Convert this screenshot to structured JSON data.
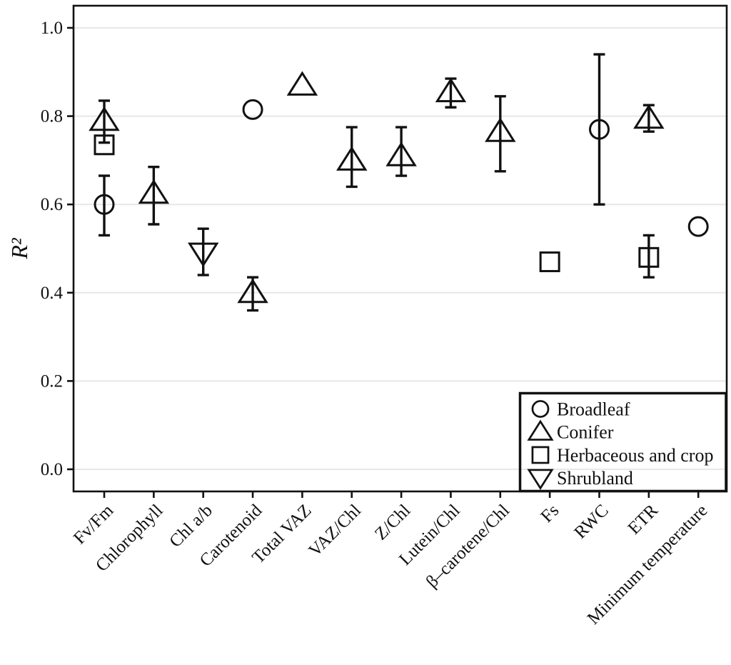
{
  "colors": {
    "stroke": "#111111",
    "grid": "#e7e7e7",
    "background": "#ffffff"
  },
  "chart_data": {
    "type": "scatter",
    "title": "",
    "xlabel": "",
    "ylabel": "R²",
    "ylim": [
      0.0,
      1.0
    ],
    "yticks": [
      0.0,
      0.2,
      0.4,
      0.6,
      0.8,
      1.0
    ],
    "ytick_labels": [
      "0.0",
      "0.2",
      "0.4",
      "0.6",
      "0.8",
      "1.0"
    ],
    "grid": "horizontal-major-only",
    "legend_position": "inside-bottom-right",
    "markers_style": "open-black",
    "categories": [
      "Fv/Fm",
      "Chlorophyll",
      "Chl a/b",
      "Carotenoid",
      "Total VAZ",
      "VAZ/Chl",
      "Z/Chl",
      "Lutein/Chl",
      "β–carotene/Chl",
      "Fs",
      "RWC",
      "ETR",
      "Minimum temperature"
    ],
    "series": [
      {
        "name": "Broadleaf",
        "marker": "circle",
        "points": [
          {
            "category": "Fv/Fm",
            "value": 0.6,
            "err_lo": 0.53,
            "err_hi": 0.665
          },
          {
            "category": "Carotenoid",
            "value": 0.815
          },
          {
            "category": "RWC",
            "value": 0.77,
            "err_lo": 0.6,
            "err_hi": 0.94
          },
          {
            "category": "Minimum temperature",
            "value": 0.55
          }
        ]
      },
      {
        "name": "Conifer",
        "marker": "triangle-up",
        "points": [
          {
            "category": "Fv/Fm",
            "value": 0.79,
            "err_lo": 0.74,
            "err_hi": 0.835
          },
          {
            "category": "Chlorophyll",
            "value": 0.625,
            "err_lo": 0.555,
            "err_hi": 0.685
          },
          {
            "category": "Carotenoid",
            "value": 0.4,
            "err_lo": 0.36,
            "err_hi": 0.435
          },
          {
            "category": "Total VAZ",
            "value": 0.87
          },
          {
            "category": "VAZ/Chl",
            "value": 0.7,
            "err_lo": 0.64,
            "err_hi": 0.775
          },
          {
            "category": "Z/Chl",
            "value": 0.71,
            "err_lo": 0.665,
            "err_hi": 0.775
          },
          {
            "category": "Lutein/Chl",
            "value": 0.855,
            "err_lo": 0.82,
            "err_hi": 0.885
          },
          {
            "category": "β–carotene/Chl",
            "value": 0.765,
            "err_lo": 0.675,
            "err_hi": 0.845
          },
          {
            "category": "ETR",
            "value": 0.795,
            "err_lo": 0.765,
            "err_hi": 0.825
          }
        ]
      },
      {
        "name": "Herbaceous and crop",
        "marker": "square",
        "points": [
          {
            "category": "Fv/Fm",
            "value": 0.735
          },
          {
            "category": "Fs",
            "value": 0.47
          },
          {
            "category": "ETR",
            "value": 0.48,
            "err_lo": 0.435,
            "err_hi": 0.53
          }
        ]
      },
      {
        "name": "Shrubland",
        "marker": "triangle-down",
        "points": [
          {
            "category": "Chl a/b",
            "value": 0.49,
            "err_lo": 0.44,
            "err_hi": 0.545
          }
        ]
      }
    ]
  }
}
